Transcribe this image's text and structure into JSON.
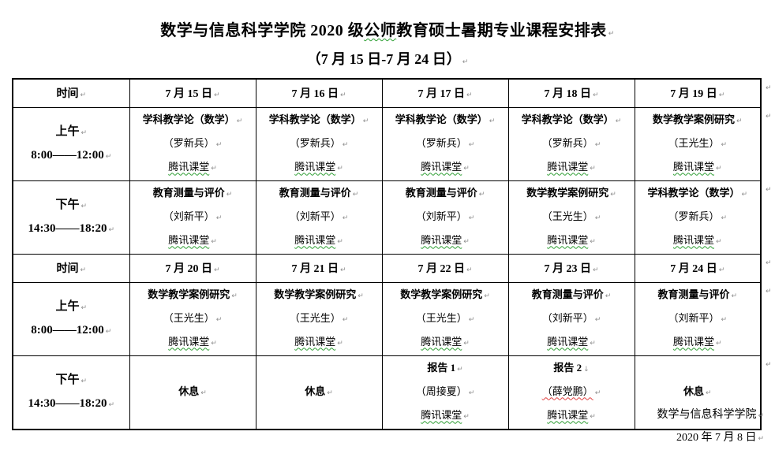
{
  "page": {
    "title_pre": "数学与信息科学学院 2020 级",
    "title_flagged": "公师",
    "title_post": "教育硕士暑期专业课程安排表",
    "subtitle": "（7 月 15 日-7 月 24 日）",
    "footer": {
      "org": "数学与信息科学学院",
      "date": "2020 年 7 月 8 日"
    }
  },
  "marks": {
    "pilcrow": "↵",
    "linebreak": "↓"
  },
  "colors": {
    "squiggle_green": "#2e9e33",
    "squiggle_red": "#e04040",
    "border": "#000000",
    "mark_gray": "#8f8f8f"
  },
  "table": {
    "rows": [
      {
        "type": "header",
        "cells": [
          {
            "lines": [
              {
                "t": "时间",
                "b": true
              }
            ]
          },
          {
            "lines": [
              {
                "t": "7 月 15 日",
                "b": true
              }
            ]
          },
          {
            "lines": [
              {
                "t": "7 月 16 日",
                "b": true
              }
            ]
          },
          {
            "lines": [
              {
                "t": "7 月 17 日",
                "b": true
              }
            ]
          },
          {
            "lines": [
              {
                "t": "7 月 18 日",
                "b": true
              }
            ]
          },
          {
            "lines": [
              {
                "t": "7 月 19 日",
                "b": true
              }
            ]
          }
        ]
      },
      {
        "type": "content",
        "cells": [
          {
            "lines": [
              {
                "t": "上午",
                "b": true
              },
              {
                "t": "8:00——12:00",
                "b": true
              }
            ]
          },
          {
            "lines": [
              {
                "t": "学科教学论（数学）",
                "b": true
              },
              {
                "t": "（罗新兵）"
              },
              {
                "t": "腾讯课堂",
                "u": "green"
              }
            ]
          },
          {
            "lines": [
              {
                "t": "学科教学论（数学）",
                "b": true
              },
              {
                "t": "（罗新兵）"
              },
              {
                "t": "腾讯课堂",
                "u": "green"
              }
            ]
          },
          {
            "lines": [
              {
                "t": "学科教学论（数学）",
                "b": true
              },
              {
                "t": "（罗新兵）"
              },
              {
                "t": "腾讯课堂",
                "u": "green"
              }
            ]
          },
          {
            "lines": [
              {
                "t": "学科教学论（数学）",
                "b": true
              },
              {
                "t": "（罗新兵）"
              },
              {
                "t": "腾讯课堂",
                "u": "green"
              }
            ]
          },
          {
            "lines": [
              {
                "t": "数学教学案例研究",
                "b": true
              },
              {
                "t": "（王光生）"
              },
              {
                "t": "腾讯课堂",
                "u": "green"
              }
            ]
          }
        ]
      },
      {
        "type": "content",
        "cells": [
          {
            "lines": [
              {
                "t": "下午",
                "b": true
              },
              {
                "t": "14:30——18:20",
                "b": true
              }
            ]
          },
          {
            "lines": [
              {
                "t": "教育测量与评价",
                "b": true
              },
              {
                "t": "（刘新平）"
              },
              {
                "t": "腾讯课堂",
                "u": "green"
              }
            ]
          },
          {
            "lines": [
              {
                "t": "教育测量与评价",
                "b": true
              },
              {
                "t": "（刘新平）"
              },
              {
                "t": "腾讯课堂",
                "u": "green"
              }
            ]
          },
          {
            "lines": [
              {
                "t": "教育测量与评价",
                "b": true
              },
              {
                "t": "（刘新平）"
              },
              {
                "t": "腾讯课堂",
                "u": "green"
              }
            ]
          },
          {
            "lines": [
              {
                "t": "数学教学案例研究",
                "b": true
              },
              {
                "t": "（王光生）"
              },
              {
                "t": "腾讯课堂",
                "u": "green"
              }
            ]
          },
          {
            "lines": [
              {
                "t": "学科教学论（数学）",
                "b": true
              },
              {
                "t": "（罗新兵）"
              },
              {
                "t": "腾讯课堂",
                "u": "green"
              }
            ]
          }
        ]
      },
      {
        "type": "header",
        "cells": [
          {
            "lines": [
              {
                "t": "时间",
                "b": true
              }
            ]
          },
          {
            "lines": [
              {
                "t": "7 月 20 日",
                "b": true
              }
            ]
          },
          {
            "lines": [
              {
                "t": "7 月 21 日",
                "b": true
              }
            ]
          },
          {
            "lines": [
              {
                "t": "7 月 22 日",
                "b": true
              }
            ]
          },
          {
            "lines": [
              {
                "t": "7 月 23 日",
                "b": true
              }
            ]
          },
          {
            "lines": [
              {
                "t": "7 月 24 日",
                "b": true
              }
            ]
          }
        ]
      },
      {
        "type": "content",
        "cells": [
          {
            "lines": [
              {
                "t": "上午",
                "b": true
              },
              {
                "t": "8:00——12:00",
                "b": true
              }
            ]
          },
          {
            "lines": [
              {
                "t": "数学教学案例研究",
                "b": true
              },
              {
                "t": "（王光生）"
              },
              {
                "t": "腾讯课堂",
                "u": "green"
              }
            ]
          },
          {
            "lines": [
              {
                "t": "数学教学案例研究",
                "b": true
              },
              {
                "t": "（王光生）"
              },
              {
                "t": "腾讯课堂",
                "u": "green"
              }
            ]
          },
          {
            "lines": [
              {
                "t": "数学教学案例研究",
                "b": true
              },
              {
                "t": "（王光生）"
              },
              {
                "t": "腾讯课堂",
                "u": "green"
              }
            ]
          },
          {
            "lines": [
              {
                "t": "教育测量与评价",
                "b": true
              },
              {
                "t": "（刘新平）"
              },
              {
                "t": "腾讯课堂",
                "u": "green"
              }
            ]
          },
          {
            "lines": [
              {
                "t": "教育测量与评价",
                "b": true
              },
              {
                "t": "（刘新平）"
              },
              {
                "t": "腾讯课堂",
                "u": "green"
              }
            ]
          }
        ]
      },
      {
        "type": "content",
        "cells": [
          {
            "lines": [
              {
                "t": "下午",
                "b": true
              },
              {
                "t": "14:30——18:20",
                "b": true
              }
            ]
          },
          {
            "lines": [
              {
                "t": "休息",
                "b": true
              }
            ]
          },
          {
            "lines": [
              {
                "t": "休息",
                "b": true
              }
            ]
          },
          {
            "lines": [
              {
                "t": "报告 1",
                "b": true
              },
              {
                "t": "（周接夏）"
              },
              {
                "t": "腾讯课堂",
                "u": "green"
              }
            ]
          },
          {
            "lines": [
              {
                "t": "报告 2",
                "b": true,
                "mark": "down"
              },
              {
                "t": "（薛党鹏）",
                "u": "red"
              },
              {
                "t": "腾讯课堂",
                "u": "green"
              }
            ]
          },
          {
            "lines": [
              {
                "t": "休息",
                "b": true
              }
            ]
          }
        ]
      }
    ]
  }
}
